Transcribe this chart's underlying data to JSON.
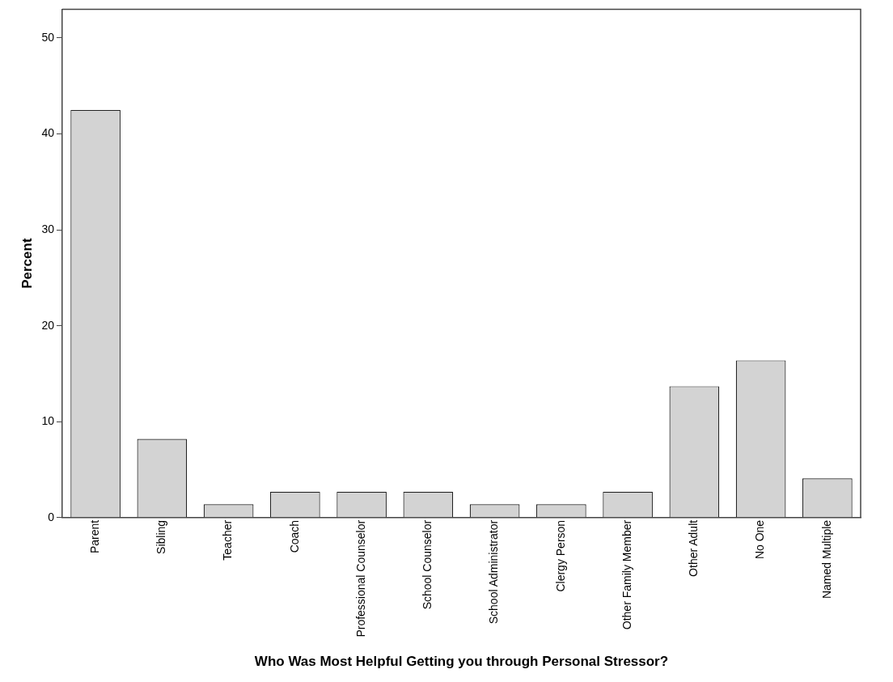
{
  "chart_data": {
    "type": "bar",
    "xlabel": "Who Was Most Helpful Getting you through Personal Stressor?",
    "ylabel": "Percent",
    "categories": [
      "Parent",
      "Sibling",
      "Teacher",
      "Coach",
      "Professional Counselor",
      "School Counselor",
      "School Administrator",
      "Clergy Person",
      "Other Family Member",
      "Other Adult",
      "No One",
      "Named Multiple"
    ],
    "values": [
      42.5,
      8.2,
      1.4,
      2.7,
      2.7,
      2.7,
      1.4,
      1.4,
      2.7,
      13.7,
      16.4,
      4.1
    ],
    "color": "#d3d3d3",
    "ylim": [
      0,
      53
    ],
    "yticks": [
      0,
      10,
      20,
      30,
      40,
      50
    ],
    "grid": false,
    "legend": false
  }
}
